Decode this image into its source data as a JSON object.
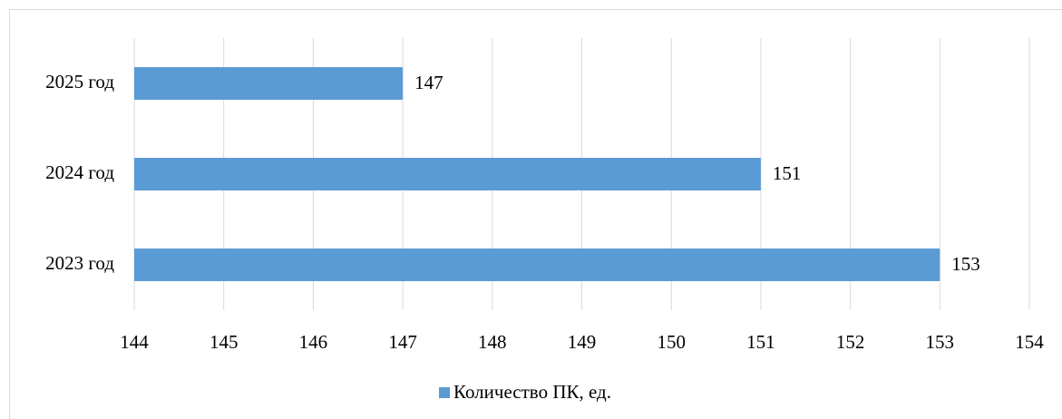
{
  "chart_data": {
    "type": "barh",
    "categories": [
      "2023 год",
      "2024 год",
      "2025 год"
    ],
    "series": [
      {
        "name": "Количество ПК, ед.",
        "color": "#5b9bd5",
        "values": [
          153,
          151,
          147
        ]
      }
    ],
    "xlim": [
      144,
      154
    ],
    "xticks": [
      144,
      145,
      146,
      147,
      148,
      149,
      150,
      151,
      152,
      153,
      154
    ],
    "grid": true,
    "legend": "bottom"
  }
}
